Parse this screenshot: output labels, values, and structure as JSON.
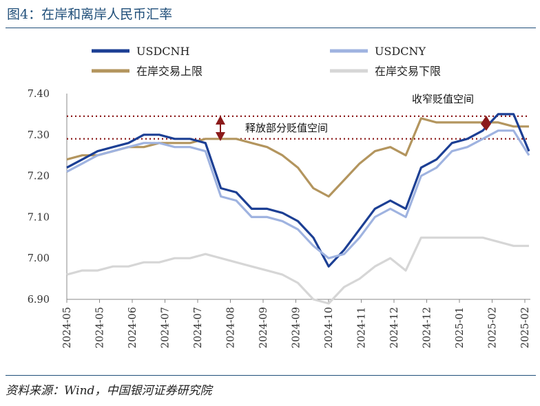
{
  "figure": {
    "title": "图4：在岸和离岸人民币汇率",
    "source": "资料来源：Wind，中国银河证券研究院"
  },
  "chart_data": {
    "type": "line",
    "ylim": [
      6.9,
      7.4
    ],
    "yticks": [
      "7.40",
      "7.30",
      "7.20",
      "7.10",
      "7.00",
      "6.90"
    ],
    "xticks": [
      "2024-05",
      "2024-05",
      "2024-06",
      "2024-07",
      "2024-07",
      "2024-08",
      "2024-09",
      "2024-09",
      "2024-10",
      "2024-11",
      "2024-12",
      "2024-12",
      "2025-01",
      "2025-02",
      "2025-02"
    ],
    "legend": [
      "USDCNH",
      "USDCNY",
      "在岸交易上限",
      "在岸交易下限"
    ],
    "grid": false,
    "reference_lines": [
      7.345,
      7.29
    ],
    "annotations": [
      "收窄贬值空间",
      "释放部分贬值空间"
    ],
    "colors": {
      "USDCNH": "#1c3f94",
      "USDCNY": "#9fb3e0",
      "upper": "#b3955e",
      "lower": "#d6d6d6",
      "ref": "#8b1a1a"
    },
    "series": [
      {
        "name": "USDCNH",
        "x": [
          0,
          5,
          10,
          15,
          20,
          25,
          30,
          35,
          40,
          45,
          50,
          55,
          60,
          65,
          70,
          75,
          80,
          85,
          90,
          95,
          100,
          105,
          110,
          115,
          120,
          125,
          130,
          135,
          140,
          145,
          150
        ],
        "y": [
          7.22,
          7.24,
          7.26,
          7.27,
          7.28,
          7.3,
          7.3,
          7.29,
          7.29,
          7.28,
          7.17,
          7.16,
          7.12,
          7.12,
          7.11,
          7.09,
          7.05,
          6.98,
          7.02,
          7.07,
          7.12,
          7.14,
          7.12,
          7.22,
          7.24,
          7.28,
          7.29,
          7.31,
          7.35,
          7.35,
          7.26
        ]
      },
      {
        "name": "USDCNY",
        "x": [
          0,
          5,
          10,
          15,
          20,
          25,
          30,
          35,
          40,
          45,
          50,
          55,
          60,
          65,
          70,
          75,
          80,
          85,
          90,
          95,
          100,
          105,
          110,
          115,
          120,
          125,
          130,
          135,
          140,
          145,
          150
        ],
        "y": [
          7.21,
          7.23,
          7.25,
          7.26,
          7.27,
          7.28,
          7.28,
          7.27,
          7.27,
          7.26,
          7.15,
          7.14,
          7.1,
          7.1,
          7.09,
          7.07,
          7.03,
          7.0,
          7.01,
          7.05,
          7.1,
          7.12,
          7.1,
          7.2,
          7.22,
          7.26,
          7.27,
          7.29,
          7.31,
          7.31,
          7.25
        ]
      },
      {
        "name": "在岸交易上限",
        "x": [
          0,
          5,
          10,
          15,
          20,
          25,
          30,
          35,
          40,
          45,
          50,
          55,
          60,
          65,
          70,
          75,
          80,
          85,
          90,
          95,
          100,
          105,
          110,
          115,
          120,
          125,
          130,
          135,
          140,
          145,
          150
        ],
        "y": [
          7.24,
          7.25,
          7.25,
          7.26,
          7.27,
          7.27,
          7.28,
          7.28,
          7.28,
          7.29,
          7.29,
          7.29,
          7.28,
          7.27,
          7.25,
          7.22,
          7.17,
          7.15,
          7.19,
          7.23,
          7.26,
          7.27,
          7.25,
          7.34,
          7.33,
          7.33,
          7.33,
          7.33,
          7.33,
          7.32,
          7.32
        ]
      },
      {
        "name": "在岸交易下限",
        "x": [
          0,
          5,
          10,
          15,
          20,
          25,
          30,
          35,
          40,
          45,
          50,
          55,
          60,
          65,
          70,
          75,
          80,
          85,
          90,
          95,
          100,
          105,
          110,
          115,
          120,
          125,
          130,
          135,
          140,
          145,
          150
        ],
        "y": [
          6.96,
          6.97,
          6.97,
          6.98,
          6.98,
          6.99,
          6.99,
          7.0,
          7.0,
          7.01,
          7.0,
          6.99,
          6.98,
          6.97,
          6.96,
          6.94,
          6.9,
          6.89,
          6.93,
          6.95,
          6.98,
          7.0,
          6.97,
          7.05,
          7.05,
          7.05,
          7.05,
          7.05,
          7.04,
          7.03,
          7.03
        ]
      }
    ]
  }
}
